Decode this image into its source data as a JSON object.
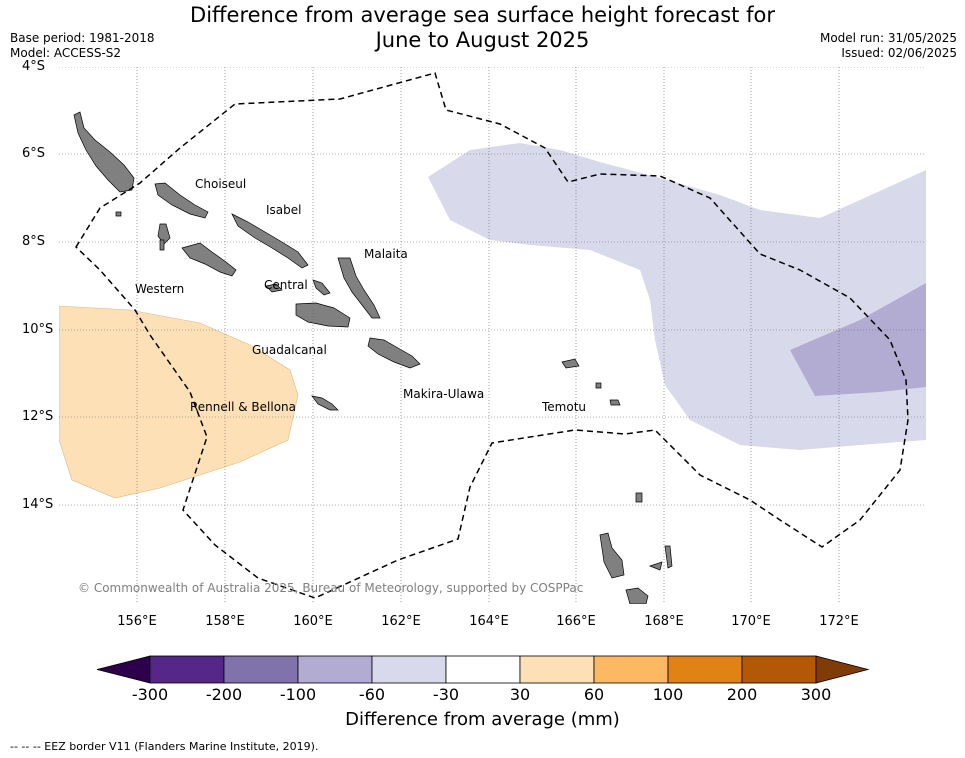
{
  "title_line1": "Difference from average sea surface height forecast for",
  "title_line2": "June to August 2025",
  "left_meta": {
    "base_period": "Base period: 1981-2018",
    "model": "Model: ACCESS-S2"
  },
  "right_meta": {
    "model_run": "Model run: 31/05/2025",
    "issued": "Issued: 02/06/2025"
  },
  "map": {
    "lat_labels": [
      "4°S",
      "6°S",
      "8°S",
      "10°S",
      "12°S",
      "14°S"
    ],
    "lon_labels": [
      "156°E",
      "158°E",
      "160°E",
      "162°E",
      "164°E",
      "166°E",
      "168°E",
      "170°E",
      "172°E"
    ],
    "province_labels": [
      "Choiseul",
      "Isabel",
      "Malaita",
      "Western",
      "Central",
      "Guadalcanal",
      "Makira-Ulawa",
      "Rennell & Bellona",
      "Temotu"
    ],
    "copyright": "© Commonwealth of Australia 2025, Bureau of Meteorology, supported by COSPPac",
    "colors": {
      "land": "#808080",
      "ocean": "#ffffff",
      "positive_30_60": "#fee0b6",
      "negative_60_30": "#d8daeb",
      "negative_100_60": "#b2abd2",
      "eez_border": "#000000"
    }
  },
  "colorbar": {
    "title": "Difference from average (mm)",
    "ticks": [
      "-300",
      "-200",
      "-100",
      "-60",
      "-30",
      "30",
      "60",
      "100",
      "200",
      "300"
    ],
    "colors": [
      "#2d004b",
      "#542788",
      "#8073ac",
      "#b2abd2",
      "#d8daeb",
      "#ffffff",
      "#fee0b6",
      "#fdb863",
      "#e08214",
      "#b35806",
      "#7f3b08"
    ]
  },
  "footer": "--  --  -- EEZ border V11 (Flanders Marine Institute, 2019)."
}
